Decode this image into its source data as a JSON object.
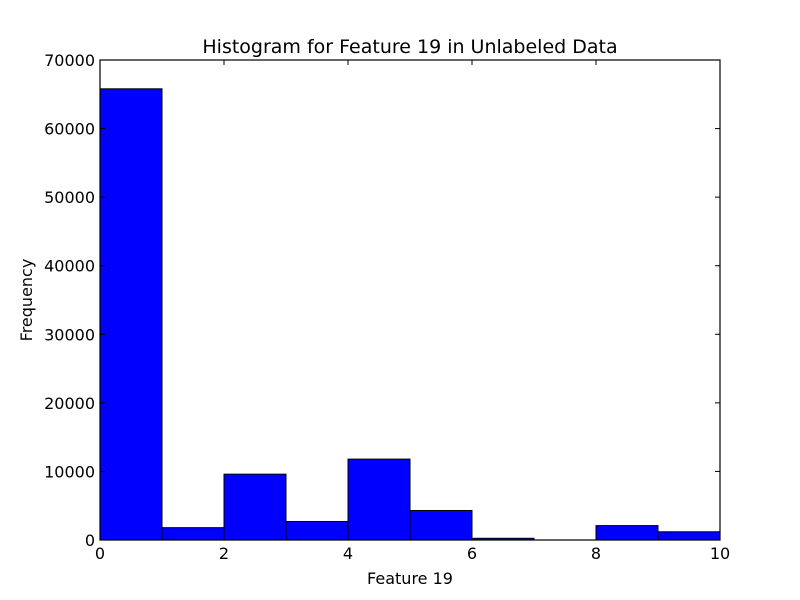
{
  "chart_data": {
    "type": "bar",
    "title": "Histogram for Feature 19 in Unlabeled Data",
    "xlabel": "Feature 19",
    "ylabel": "Frequency",
    "xlim": [
      0,
      10
    ],
    "ylim": [
      0,
      70000
    ],
    "xticks": [
      "0",
      "2",
      "4",
      "6",
      "8",
      "10"
    ],
    "yticks": [
      "0",
      "10000",
      "20000",
      "30000",
      "40000",
      "50000",
      "60000",
      "70000"
    ],
    "bins": [
      {
        "x0": 0,
        "x1": 1,
        "value": 65800
      },
      {
        "x0": 1,
        "x1": 2,
        "value": 1800
      },
      {
        "x0": 2,
        "x1": 3,
        "value": 9600
      },
      {
        "x0": 3,
        "x1": 4,
        "value": 2700
      },
      {
        "x0": 4,
        "x1": 5,
        "value": 11800
      },
      {
        "x0": 5,
        "x1": 6,
        "value": 4300
      },
      {
        "x0": 6,
        "x1": 7,
        "value": 250
      },
      {
        "x0": 7,
        "x1": 8,
        "value": 0
      },
      {
        "x0": 8,
        "x1": 9,
        "value": 2100
      },
      {
        "x0": 9,
        "x1": 10,
        "value": 1200
      }
    ],
    "bar_color": "#0000ff",
    "grid": false,
    "legend": "none"
  }
}
